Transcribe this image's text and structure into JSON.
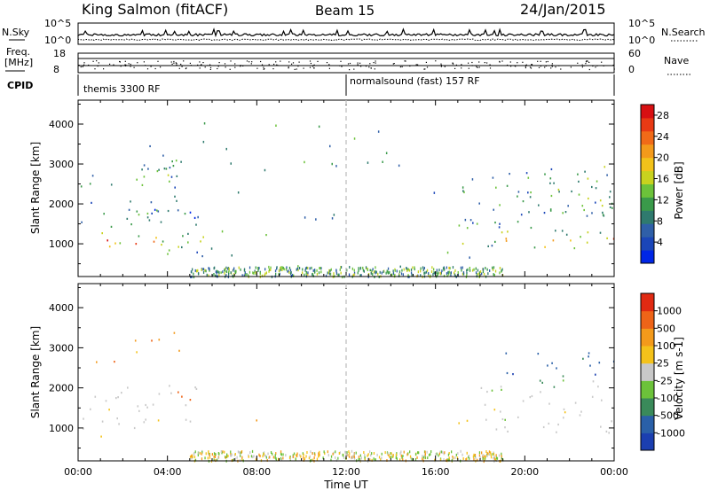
{
  "header": {
    "station": "King Salmon (fitACF)",
    "beam": "Beam 15",
    "date": "24/Jan/2015"
  },
  "top_panels": {
    "nsky_label": "N.Sky",
    "nsearch_label": "N.Search",
    "freq_label_1": "Freq.",
    "freq_label_2": "[MHz]",
    "nave_label": "Nave",
    "cpid_label": "CPID",
    "nsky_ticks": [
      "10^5",
      "10^0"
    ],
    "nsearch_ticks": [
      "10^5",
      "10^0"
    ],
    "freq_ticks": [
      "18",
      "8"
    ],
    "nave_ticks": [
      "60",
      "0"
    ],
    "cpid_segments": [
      {
        "label": "themis 3300 RF",
        "start_hour": 0,
        "end_hour": 12
      },
      {
        "label": "normalsound (fast) 157 RF",
        "start_hour": 12,
        "end_hour": 24
      }
    ]
  },
  "chart_data": [
    {
      "type": "heatmap",
      "name": "power",
      "ylabel": "Slant Range [km]",
      "xlabel": "",
      "xlim": [
        0,
        24
      ],
      "ylim": [
        180,
        4600
      ],
      "yticks": [
        "1000",
        "2000",
        "3000",
        "4000"
      ],
      "colorbar": {
        "label": "Power [dB]",
        "ticks": [
          "28",
          "24",
          "20",
          "16",
          "12",
          "8",
          "4"
        ],
        "range": [
          0,
          30
        ],
        "colors": [
          "#0026e6",
          "#1b46b8",
          "#2f5fa8",
          "#2f7a6e",
          "#3a9a4a",
          "#6cc23a",
          "#c8d21e",
          "#f2c21a",
          "#f39a1b",
          "#f06a18",
          "#e83a14",
          "#d81012"
        ]
      },
      "regions": [
        {
          "t0": 0.1,
          "t1": 5.6,
          "r0": 850,
          "r1": 1350,
          "level": 14
        },
        {
          "t0": 0.5,
          "t1": 4.0,
          "r0": 1000,
          "r1": 1250,
          "level": 24
        },
        {
          "t0": 0.1,
          "t1": 5.5,
          "r0": 1350,
          "r1": 2100,
          "level": 8
        },
        {
          "t0": 0.1,
          "t1": 1.8,
          "r0": 2300,
          "r1": 2800,
          "level": 8
        },
        {
          "t0": 2.3,
          "t1": 4.8,
          "r0": 1600,
          "r1": 3500,
          "level": 8
        },
        {
          "t0": 3.0,
          "t1": 4.7,
          "r0": 2400,
          "r1": 3500,
          "level": 9
        },
        {
          "t0": 3.0,
          "t1": 5.6,
          "r0": 700,
          "r1": 1100,
          "level": 8
        },
        {
          "t0": 7.5,
          "t1": 8.4,
          "r0": 1050,
          "r1": 1300,
          "level": 13
        },
        {
          "t0": 16.9,
          "t1": 24.0,
          "r0": 900,
          "r1": 1400,
          "level": 12
        },
        {
          "t0": 18.5,
          "t1": 24.0,
          "r0": 950,
          "r1": 1200,
          "level": 22
        },
        {
          "t0": 17.0,
          "t1": 24.0,
          "r0": 1400,
          "r1": 2200,
          "level": 8
        },
        {
          "t0": 18.5,
          "t1": 24.0,
          "r0": 1700,
          "r1": 3000,
          "level": 9
        },
        {
          "t0": 20.0,
          "t1": 24.0,
          "r0": 2100,
          "r1": 2700,
          "level": 14
        }
      ]
    },
    {
      "type": "heatmap",
      "name": "velocity",
      "ylabel": "Slant Range [km]",
      "xlabel": "Time UT",
      "xlim": [
        0,
        24
      ],
      "ylim": [
        180,
        4600
      ],
      "yticks": [
        "1000",
        "2000",
        "3000",
        "4000"
      ],
      "xticks": [
        "00:00",
        "04:00",
        "08:00",
        "12:00",
        "16:00",
        "20:00",
        "00:00"
      ],
      "xtick_hours": [
        0,
        4,
        8,
        12,
        16,
        20,
        24
      ],
      "colorbar": {
        "label": "Velocity [m s-1]",
        "ticks": [
          "1000",
          "500",
          "100",
          "25",
          "-25",
          "-100",
          "-500",
          "-1000"
        ],
        "colors": [
          "#1b3fb0",
          "#2a60a8",
          "#3a8a5a",
          "#6cc23a",
          "#c8c8c8",
          "#f4c21a",
          "#f39a1b",
          "#ee6418",
          "#e02a12"
        ]
      },
      "regions": [
        {
          "t0": 0.1,
          "t1": 5.6,
          "r0": 900,
          "r1": 2100,
          "bin": 4
        },
        {
          "t0": 0.1,
          "t1": 1.8,
          "r0": 2400,
          "r1": 2700,
          "bin": 7
        },
        {
          "t0": 2.5,
          "t1": 4.8,
          "r0": 2900,
          "r1": 3500,
          "bin": 6
        },
        {
          "t0": 4.2,
          "t1": 5.3,
          "r0": 1500,
          "r1": 2100,
          "bin": 7
        },
        {
          "t0": 0.8,
          "t1": 2.5,
          "r0": 700,
          "r1": 850,
          "bin": 5
        },
        {
          "t0": 7.5,
          "t1": 8.4,
          "r0": 1150,
          "r1": 1300,
          "bin": 6
        },
        {
          "t0": 16.9,
          "t1": 18.4,
          "r0": 950,
          "r1": 1250,
          "bin": 5
        },
        {
          "t0": 17.5,
          "t1": 24.0,
          "r0": 900,
          "r1": 2200,
          "bin": 4
        },
        {
          "t0": 19.0,
          "t1": 24.0,
          "r0": 2300,
          "r1": 2900,
          "bin": 1
        },
        {
          "t0": 20.5,
          "t1": 23.5,
          "r0": 2000,
          "r1": 2400,
          "bin": 2
        }
      ]
    }
  ]
}
